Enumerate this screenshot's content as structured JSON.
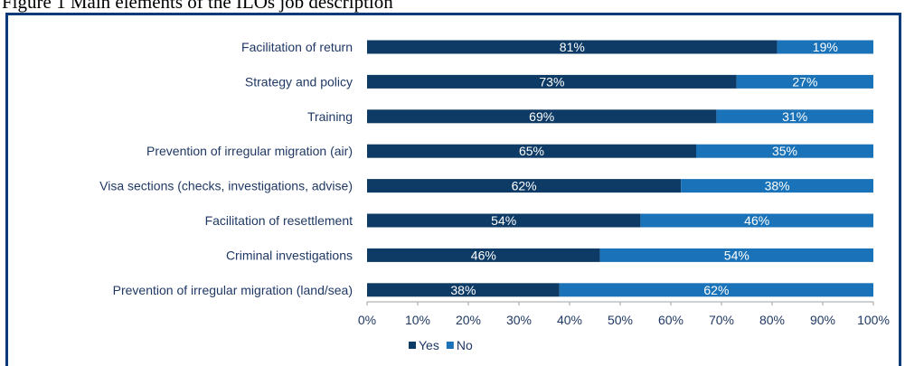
{
  "caption": "Figure 1 Main elements of the ILOs job description",
  "chart_data": {
    "type": "bar",
    "orientation": "horizontal",
    "stacked": true,
    "categories": [
      "Facilitation of return",
      "Strategy and policy",
      "Training",
      "Prevention of irregular migration (air)",
      "Visa sections (checks, investigations, advise)",
      "Facilitation of resettlement",
      "Criminal investigations",
      "Prevention of irregular migration (land/sea)"
    ],
    "series": [
      {
        "name": "Yes",
        "color": "#0d3b66",
        "values": [
          81,
          73,
          69,
          65,
          62,
          54,
          46,
          38
        ]
      },
      {
        "name": "No",
        "color": "#1a73b8",
        "values": [
          19,
          27,
          31,
          35,
          38,
          46,
          54,
          62
        ]
      }
    ],
    "data_labels": {
      "Yes": [
        "81%",
        "73%",
        "69%",
        "65%",
        "62%",
        "54%",
        "46%",
        "38%"
      ],
      "No": [
        "19%",
        "27%",
        "31%",
        "35%",
        "38%",
        "46%",
        "54%",
        "62%"
      ]
    },
    "xlim": [
      0,
      100
    ],
    "x_ticks": [
      "0%",
      "10%",
      "20%",
      "30%",
      "40%",
      "50%",
      "60%",
      "70%",
      "80%",
      "90%",
      "100%"
    ],
    "grid": false,
    "legend_position": "bottom"
  }
}
